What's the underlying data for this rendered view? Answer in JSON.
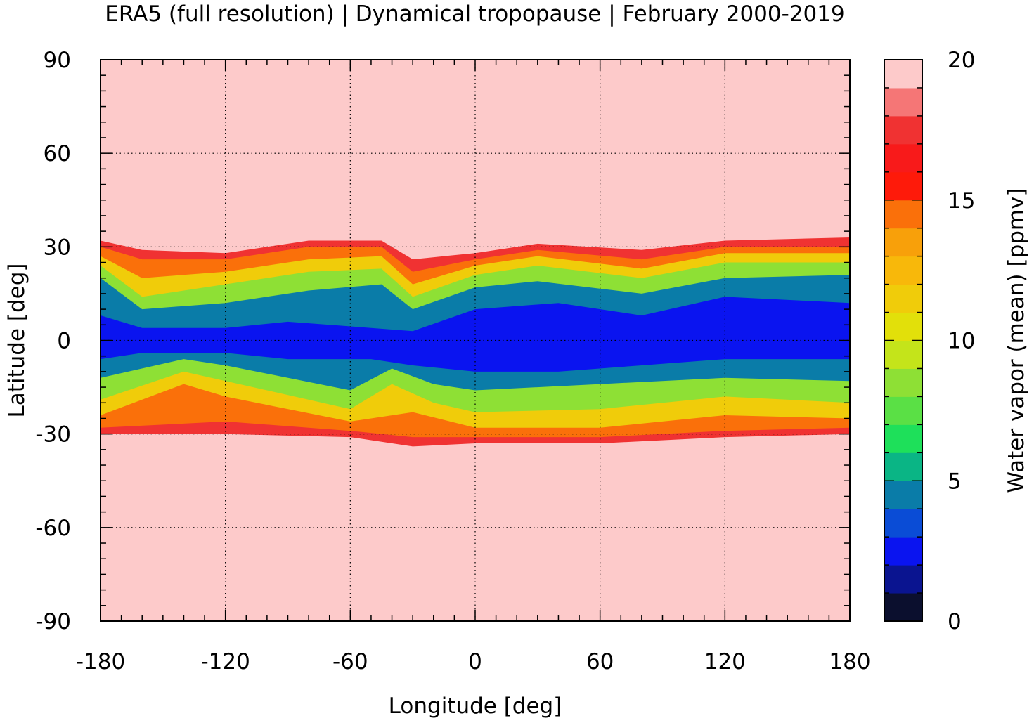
{
  "chart_data": {
    "type": "heatmap",
    "title": "ERA5 (full resolution) | Dynamical tropopause | February 2000-2019",
    "xlabel": "Longitude [deg]",
    "ylabel": "Latitude [deg]",
    "colorbar_label": "Water vapor (mean) [ppmv]",
    "xlim": [
      -180,
      180
    ],
    "ylim": [
      -90,
      90
    ],
    "x_ticks": [
      "-180",
      "-120",
      "-60",
      "0",
      "60",
      "120",
      "180"
    ],
    "y_ticks": [
      "90",
      "60",
      "30",
      "0",
      "-30",
      "-60",
      "-90"
    ],
    "colorbar_range": [
      0,
      20
    ],
    "colorbar_ticks": [
      "0",
      "5",
      "10",
      "15",
      "20"
    ],
    "colorbar_levels": [
      {
        "from": 0,
        "to": 1,
        "color": "#0b0f2e"
      },
      {
        "from": 1,
        "to": 2,
        "color": "#0a1490"
      },
      {
        "from": 2,
        "to": 3,
        "color": "#0a14f0"
      },
      {
        "from": 3,
        "to": 4,
        "color": "#0a4cd6"
      },
      {
        "from": 4,
        "to": 5,
        "color": "#0a7ca8"
      },
      {
        "from": 5,
        "to": 6,
        "color": "#0ab585"
      },
      {
        "from": 6,
        "to": 7,
        "color": "#1ee05a"
      },
      {
        "from": 7,
        "to": 8,
        "color": "#5ae045"
      },
      {
        "from": 8,
        "to": 9,
        "color": "#8ee035"
      },
      {
        "from": 9,
        "to": 10,
        "color": "#c4e41a"
      },
      {
        "from": 10,
        "to": 11,
        "color": "#e2e00a"
      },
      {
        "from": 11,
        "to": 12,
        "color": "#f0cc0a"
      },
      {
        "from": 12,
        "to": 13,
        "color": "#f8b80a"
      },
      {
        "from": 13,
        "to": 14,
        "color": "#f8a00a"
      },
      {
        "from": 14,
        "to": 15,
        "color": "#fa700a"
      },
      {
        "from": 15,
        "to": 16,
        "color": "#fe1a0a"
      },
      {
        "from": 16,
        "to": 17,
        "color": "#f81a1a"
      },
      {
        "from": 17,
        "to": 18,
        "color": "#f03232"
      },
      {
        "from": 18,
        "to": 19,
        "color": "#f57676"
      },
      {
        "from": 19,
        "to": 20,
        "color": "#fdcaca"
      }
    ],
    "background_value": 20,
    "zones": [
      {
        "value": 17,
        "west": [
          [
            -180,
            32
          ],
          [
            -160,
            29
          ],
          [
            -120,
            28
          ],
          [
            -80,
            32
          ],
          [
            -45,
            32
          ],
          [
            -30,
            26
          ],
          [
            0,
            28
          ],
          [
            30,
            31
          ],
          [
            80,
            29
          ],
          [
            120,
            32
          ],
          [
            180,
            33
          ]
        ],
        "east_south": [
          [
            -180,
            -30
          ],
          [
            -120,
            -30
          ],
          [
            -60,
            -31
          ],
          [
            -30,
            -34
          ],
          [
            0,
            -33
          ],
          [
            60,
            -33
          ],
          [
            120,
            -31
          ],
          [
            180,
            -30
          ]
        ]
      },
      {
        "value": 14,
        "west": [
          [
            -180,
            30
          ],
          [
            -160,
            26
          ],
          [
            -120,
            26
          ],
          [
            -80,
            30
          ],
          [
            -45,
            30
          ],
          [
            -30,
            22
          ],
          [
            0,
            26
          ],
          [
            30,
            29
          ],
          [
            80,
            26
          ],
          [
            120,
            30
          ],
          [
            180,
            30
          ]
        ],
        "east_south": [
          [
            -180,
            -28
          ],
          [
            -120,
            -26
          ],
          [
            -60,
            -29
          ],
          [
            -30,
            -31
          ],
          [
            0,
            -31
          ],
          [
            60,
            -31
          ],
          [
            120,
            -29
          ],
          [
            180,
            -28
          ]
        ]
      },
      {
        "value": 11,
        "west": [
          [
            -180,
            27
          ],
          [
            -160,
            20
          ],
          [
            -120,
            22
          ],
          [
            -80,
            26
          ],
          [
            -45,
            27
          ],
          [
            -30,
            18
          ],
          [
            0,
            24
          ],
          [
            30,
            27
          ],
          [
            80,
            23
          ],
          [
            120,
            28
          ],
          [
            180,
            28
          ]
        ],
        "east_south": [
          [
            -180,
            -24
          ],
          [
            -140,
            -14
          ],
          [
            -120,
            -18
          ],
          [
            -60,
            -26
          ],
          [
            -30,
            -23
          ],
          [
            0,
            -28
          ],
          [
            60,
            -28
          ],
          [
            120,
            -24
          ],
          [
            180,
            -25
          ]
        ]
      },
      {
        "value": 8,
        "west": [
          [
            -180,
            24
          ],
          [
            -160,
            14
          ],
          [
            -120,
            18
          ],
          [
            -80,
            22
          ],
          [
            -45,
            23
          ],
          [
            -30,
            14
          ],
          [
            0,
            21
          ],
          [
            30,
            24
          ],
          [
            80,
            20
          ],
          [
            120,
            25
          ],
          [
            180,
            25
          ]
        ],
        "east_south": [
          [
            -180,
            -19
          ],
          [
            -140,
            -10
          ],
          [
            -120,
            -13
          ],
          [
            -60,
            -22
          ],
          [
            -40,
            -14
          ],
          [
            -20,
            -20
          ],
          [
            0,
            -23
          ],
          [
            60,
            -22
          ],
          [
            120,
            -18
          ],
          [
            180,
            -20
          ]
        ]
      },
      {
        "value": 4,
        "west": [
          [
            -180,
            20
          ],
          [
            -160,
            10
          ],
          [
            -120,
            12
          ],
          [
            -80,
            16
          ],
          [
            -45,
            18
          ],
          [
            -30,
            10
          ],
          [
            0,
            17
          ],
          [
            30,
            19
          ],
          [
            80,
            15
          ],
          [
            120,
            20
          ],
          [
            180,
            21
          ]
        ],
        "east_south": [
          [
            -180,
            -12
          ],
          [
            -140,
            -6
          ],
          [
            -120,
            -8
          ],
          [
            -60,
            -16
          ],
          [
            -40,
            -9
          ],
          [
            -20,
            -14
          ],
          [
            0,
            -16
          ],
          [
            60,
            -14
          ],
          [
            120,
            -12
          ],
          [
            180,
            -13
          ]
        ]
      },
      {
        "value": 2.5,
        "west": [
          [
            -180,
            8
          ],
          [
            -160,
            4
          ],
          [
            -120,
            4
          ],
          [
            -90,
            6
          ],
          [
            -50,
            4
          ],
          [
            -30,
            3
          ],
          [
            0,
            10
          ],
          [
            40,
            12
          ],
          [
            80,
            8
          ],
          [
            120,
            14
          ],
          [
            180,
            12
          ]
        ],
        "east_south": [
          [
            -180,
            -6
          ],
          [
            -160,
            -4
          ],
          [
            -120,
            -4
          ],
          [
            -90,
            -6
          ],
          [
            -50,
            -6
          ],
          [
            -30,
            -8
          ],
          [
            0,
            -10
          ],
          [
            40,
            -10
          ],
          [
            80,
            -8
          ],
          [
            120,
            -6
          ],
          [
            180,
            -6
          ]
        ]
      }
    ]
  }
}
